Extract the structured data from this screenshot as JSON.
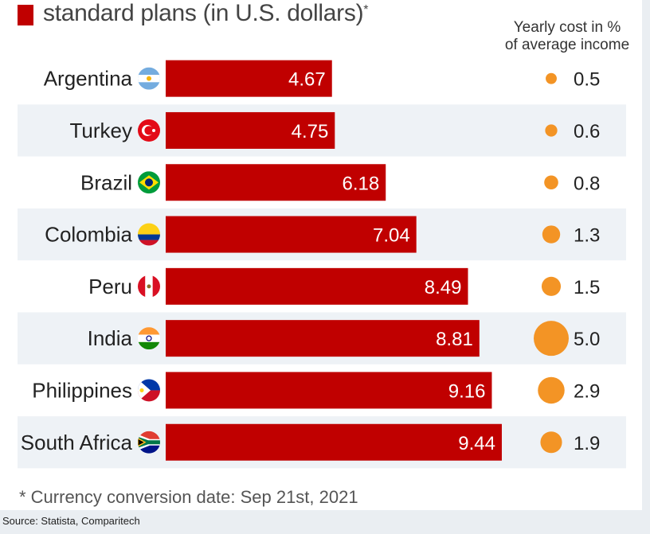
{
  "header": {
    "subtitle": "standard plans (in U.S. dollars)",
    "subtitle_mark": "*",
    "ratio_header_line1": "Yearly cost in %",
    "ratio_header_line2": "of average income"
  },
  "footnote": "* Currency conversion date: Sep 21st, 2021",
  "source": "Source: Statista, Comparitech",
  "colors": {
    "bar": "#c00000",
    "bubble": "#f39425",
    "row_stripe": "#eef2f6"
  },
  "chart_data": {
    "type": "bar",
    "orientation": "horizontal",
    "categories": [
      "Argentina",
      "Turkey",
      "Brazil",
      "Colombia",
      "Peru",
      "India",
      "Philippines",
      "South Africa"
    ],
    "flags": [
      "argentina-flag-icon",
      "turkey-flag-icon",
      "brazil-flag-icon",
      "colombia-flag-icon",
      "peru-flag-icon",
      "india-flag-icon",
      "philippines-flag-icon",
      "south-africa-flag-icon"
    ],
    "values": [
      4.67,
      4.75,
      6.18,
      7.04,
      8.49,
      8.81,
      9.16,
      9.44
    ],
    "value_labels": [
      "4.67",
      "4.75",
      "6.18",
      "7.04",
      "8.49",
      "8.81",
      "9.16",
      "9.44"
    ],
    "secondary_series": {
      "type": "bubble",
      "values": [
        0.5,
        0.6,
        0.8,
        1.3,
        1.5,
        5.0,
        2.9,
        1.9
      ],
      "value_labels": [
        "0.5",
        "0.6",
        "0.8",
        "1.3",
        "1.5",
        "5.0",
        "2.9",
        "1.9"
      ]
    },
    "grid": false
  }
}
